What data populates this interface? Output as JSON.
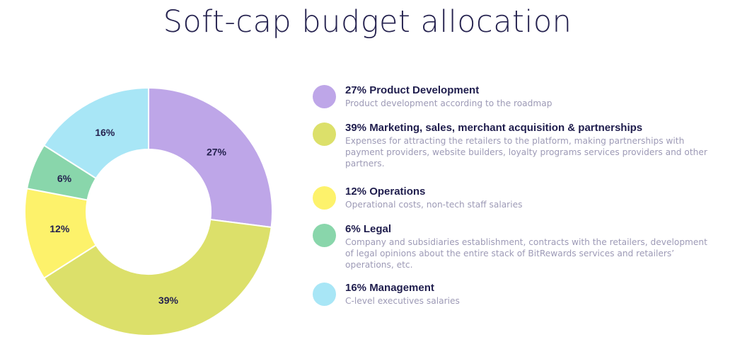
{
  "title": "Soft-cap budget allocation",
  "chart_data": {
    "type": "pie",
    "title": "Soft-cap budget allocation",
    "slices": [
      {
        "key": "product",
        "value": 27,
        "label": "27%",
        "color": "#bea6e8"
      },
      {
        "key": "marketing",
        "value": 39,
        "label": "39%",
        "color": "#dce06a"
      },
      {
        "key": "operations",
        "value": 12,
        "label": "12%",
        "color": "#fdf26b"
      },
      {
        "key": "legal",
        "value": 6,
        "label": "6%",
        "color": "#89d6ab"
      },
      {
        "key": "management",
        "value": 16,
        "label": "16%",
        "color": "#a8e6f6"
      }
    ]
  },
  "legend": [
    {
      "heading": "27% Product Development",
      "description": "Product development according to the roadmap",
      "color": "#bea6e8"
    },
    {
      "heading": "39% Marketing, sales, merchant acquisition & partnerships",
      "description": "Expenses for attracting the retailers to the platform, making partnerships with payment providers, website builders, loyalty programs services providers and other partners.",
      "color": "#dce06a"
    },
    {
      "heading": "12% Operations",
      "description": "Operational costs, non-tech staff salaries",
      "color": "#fdf26b"
    },
    {
      "heading": "6% Legal",
      "description": "Company and subsidiaries establishment, contracts with the retailers, development of legal opinions about the entire stack of BitRewards services and retailers’ operations, etc.",
      "color": "#89d6ab"
    },
    {
      "heading": "16% Management",
      "description": "C-level executives salaries",
      "color": "#a8e6f6"
    }
  ]
}
